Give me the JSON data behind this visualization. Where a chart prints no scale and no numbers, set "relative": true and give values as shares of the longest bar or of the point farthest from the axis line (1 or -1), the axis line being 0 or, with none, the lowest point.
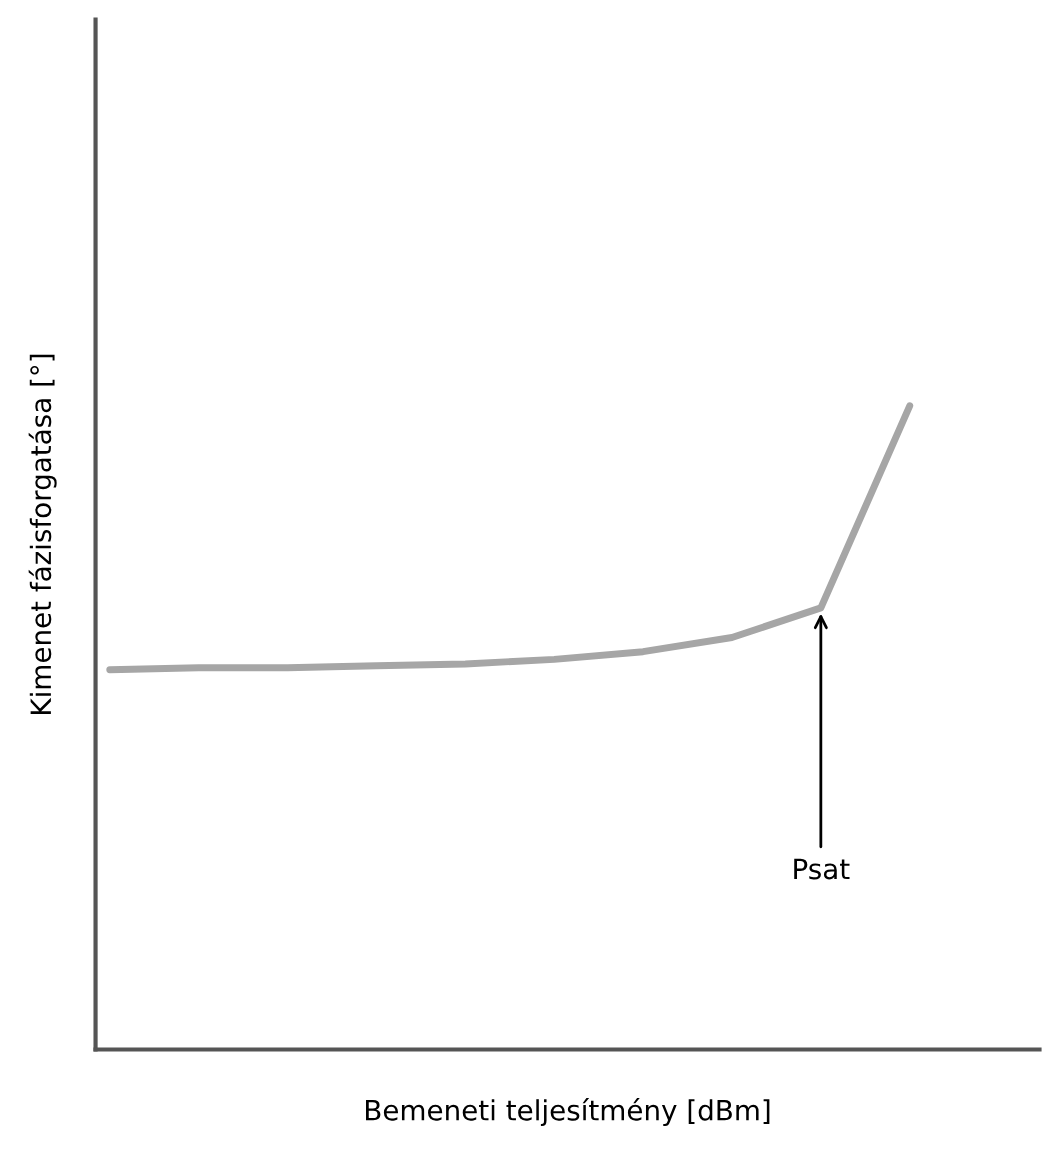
{
  "chart_data": {
    "type": "line",
    "relative": true,
    "xlabel": "Bemeneti teljesítmény [dBm]",
    "ylabel": "Kimenet fázisforgatása [°]",
    "categories": [
      null,
      null,
      null,
      null,
      null,
      null,
      null,
      null,
      null,
      null
    ],
    "series": [
      {
        "color": "#a6a6a6",
        "values": [
          0.59,
          0.593,
          0.593,
          0.596,
          0.599,
          0.606,
          0.618,
          0.64,
          0.686,
          1.0
        ]
      }
    ],
    "annotations": [
      {
        "text": "Psat",
        "y": 0.686
      }
    ],
    "grid": false,
    "legend": false
  }
}
